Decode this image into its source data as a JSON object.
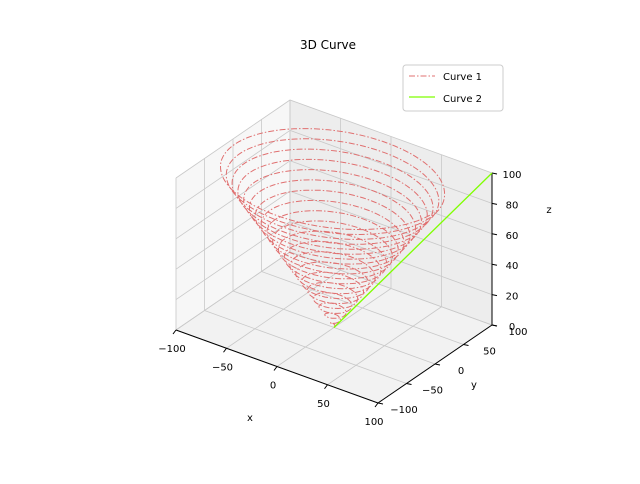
{
  "chart_data": {
    "type": "line3d",
    "title": "3D Curve",
    "xlabel": "x",
    "ylabel": "y",
    "zlabel": "z",
    "xlim": [
      -100,
      100
    ],
    "ylim": [
      -100,
      100
    ],
    "zlim": [
      0,
      100
    ],
    "xticks": [
      -100,
      -50,
      0,
      50,
      100
    ],
    "yticks": [
      -100,
      -50,
      0,
      50,
      100
    ],
    "zticks": [
      0,
      20,
      40,
      60,
      80,
      100
    ],
    "xtick_labels": [
      "−100",
      "−50",
      "0",
      "50",
      "100"
    ],
    "ytick_labels": [
      "−100",
      "−50",
      "0",
      "50",
      "100"
    ],
    "ztick_labels": [
      "0",
      "20",
      "40",
      "60",
      "80",
      "100"
    ],
    "grid": true,
    "legend_position": "upper right",
    "series": [
      {
        "name": "Curve 1",
        "color": "#e07070",
        "linestyle": "dashdot",
        "description": "conical helix: x = t*cos(t_param), y = t*sin(t_param), z = t, radius grows with z",
        "z_range": [
          0,
          100
        ],
        "r_range": [
          0,
          100
        ],
        "turns": 20
      },
      {
        "name": "Curve 2",
        "color": "#7fff00",
        "linestyle": "solid",
        "description": "straight line from (0,0,0) to (100,100,100)",
        "points": [
          [
            0,
            0,
            0
          ],
          [
            100,
            100,
            100
          ]
        ]
      }
    ]
  },
  "legend": {
    "items": [
      {
        "label": "Curve 1",
        "color": "#e07070",
        "style": "dashdot"
      },
      {
        "label": "Curve 2",
        "color": "#7fff00",
        "style": "solid"
      }
    ]
  }
}
